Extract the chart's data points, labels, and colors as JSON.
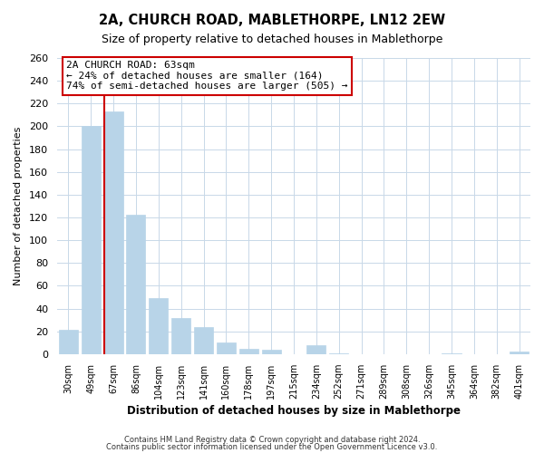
{
  "title": "2A, CHURCH ROAD, MABLETHORPE, LN12 2EW",
  "subtitle": "Size of property relative to detached houses in Mablethorpe",
  "xlabel": "Distribution of detached houses by size in Mablethorpe",
  "ylabel": "Number of detached properties",
  "bar_color": "#b8d4e8",
  "line_color": "#cc0000",
  "categories": [
    "30sqm",
    "49sqm",
    "67sqm",
    "86sqm",
    "104sqm",
    "123sqm",
    "141sqm",
    "160sqm",
    "178sqm",
    "197sqm",
    "215sqm",
    "234sqm",
    "252sqm",
    "271sqm",
    "289sqm",
    "308sqm",
    "326sqm",
    "345sqm",
    "364sqm",
    "382sqm",
    "401sqm"
  ],
  "values": [
    21,
    200,
    213,
    122,
    49,
    32,
    24,
    10,
    5,
    4,
    0,
    8,
    1,
    0,
    0,
    0,
    0,
    1,
    0,
    0,
    2
  ],
  "marker_index": 2,
  "annotation_title": "2A CHURCH ROAD: 63sqm",
  "annotation_line1": "← 24% of detached houses are smaller (164)",
  "annotation_line2": "74% of semi-detached houses are larger (505) →",
  "ylim": [
    0,
    260
  ],
  "yticks": [
    0,
    20,
    40,
    60,
    80,
    100,
    120,
    140,
    160,
    180,
    200,
    220,
    240,
    260
  ],
  "footer1": "Contains HM Land Registry data © Crown copyright and database right 2024.",
  "footer2": "Contains public sector information licensed under the Open Government Licence v3.0.",
  "background_color": "#ffffff",
  "grid_color": "#c8d8e8"
}
